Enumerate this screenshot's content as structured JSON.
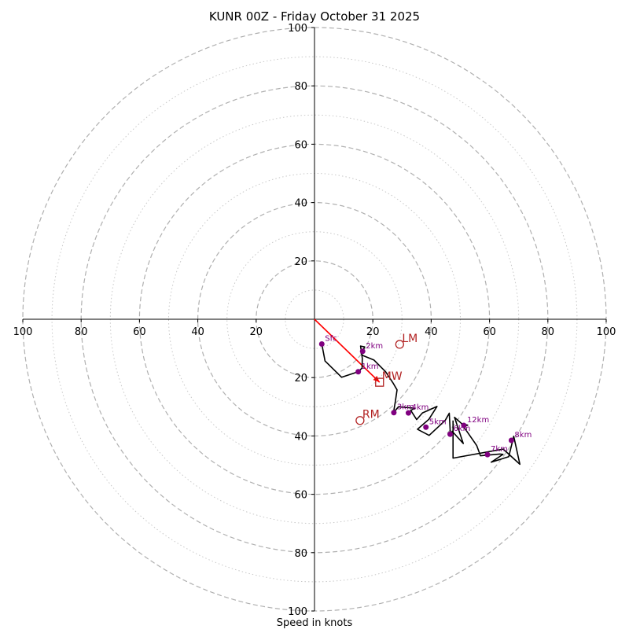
{
  "chart_data": {
    "type": "hodograph",
    "title": "KUNR 00Z - Friday October 31 2025",
    "xlabel": "Speed in knots",
    "axis_range": [
      -100,
      100
    ],
    "ring_major": [
      20,
      40,
      60,
      80,
      100
    ],
    "ring_minor": [
      10,
      30,
      50,
      70,
      90
    ],
    "x_tick_labels": [
      "100",
      "80",
      "60",
      "40",
      "20",
      "20",
      "40",
      "60",
      "80",
      "100"
    ],
    "x_tick_values": [
      -100,
      -80,
      -60,
      -40,
      -20,
      20,
      40,
      60,
      80,
      100
    ],
    "y_tick_labels": [
      "100",
      "80",
      "60",
      "40",
      "20",
      "20",
      "40",
      "60",
      "80",
      "100"
    ],
    "y_tick_values": [
      100,
      80,
      60,
      40,
      20,
      -20,
      -40,
      -60,
      -80,
      -100
    ],
    "trace": [
      [
        2.5,
        -8.5
      ],
      [
        3.6,
        -14.3
      ],
      [
        9.3,
        -19.9
      ],
      [
        15.0,
        -18.0
      ],
      [
        16.3,
        -16.7
      ],
      [
        16.4,
        -13.4
      ],
      [
        15.8,
        -9.2
      ],
      [
        17.2,
        -9.5
      ],
      [
        16.0,
        -11.7
      ],
      [
        16.5,
        -12.4
      ],
      [
        20.4,
        -14.0
      ],
      [
        24.4,
        -18.0
      ],
      [
        26.9,
        -21.8
      ],
      [
        28.3,
        -24.2
      ],
      [
        27.8,
        -27.7
      ],
      [
        27.1,
        -32.0
      ],
      [
        28.8,
        -30.0
      ],
      [
        34.5,
        -30.5
      ],
      [
        33.0,
        -31.2
      ],
      [
        35.0,
        -34.4
      ],
      [
        37.0,
        -32.1
      ],
      [
        42.0,
        -29.9
      ],
      [
        39.2,
        -34.3
      ],
      [
        35.3,
        -37.7
      ],
      [
        39.3,
        -39.8
      ],
      [
        44.8,
        -34.7
      ],
      [
        46.2,
        -32.2
      ],
      [
        46.5,
        -37.9
      ],
      [
        46.7,
        -40.1
      ],
      [
        47.2,
        -38.4
      ],
      [
        51.0,
        -42.6
      ],
      [
        48.0,
        -33.6
      ],
      [
        51.4,
        -36.6
      ],
      [
        52.5,
        -36.3
      ],
      [
        50.4,
        -35.8
      ],
      [
        55.6,
        -43.3
      ],
      [
        56.9,
        -46.8
      ],
      [
        63.5,
        -46.2
      ],
      [
        64.6,
        -46.3
      ],
      [
        60.6,
        -49.0
      ],
      [
        66.6,
        -47.1
      ],
      [
        68.3,
        -40.1
      ],
      [
        70.4,
        -49.7
      ],
      [
        64.7,
        -44.5
      ],
      [
        47.5,
        -47.6
      ],
      [
        47.5,
        -34.7
      ]
    ],
    "height_labels": [
      "Sfc",
      "1km",
      "2km",
      "3km",
      "4km",
      "5km",
      "6km",
      "7km",
      "8km",
      "12km"
    ],
    "height_points": [
      [
        2.5,
        -8.5
      ],
      [
        15.0,
        -18.0
      ],
      [
        16.5,
        -11.0
      ],
      [
        27.2,
        -32.0
      ],
      [
        32.2,
        -32.1
      ],
      [
        38.2,
        -37.0
      ],
      [
        46.5,
        -39.4
      ],
      [
        59.3,
        -46.4
      ],
      [
        67.5,
        -41.5
      ],
      [
        51.2,
        -36.4
      ]
    ],
    "storm_motion_labels": [
      "LM",
      "RM",
      "MW"
    ],
    "storm_motion_points": [
      [
        29.2,
        -8.6
      ],
      [
        15.6,
        -34.7
      ],
      [
        22.3,
        -21.6
      ]
    ],
    "shear_vector": [
      [
        0,
        0
      ],
      [
        22.3,
        -21.6
      ]
    ],
    "colors": {
      "trace": "#000000",
      "height_marker": "#800080",
      "storm_motion": "#b22222",
      "shear_vector": "#ff0000",
      "ring_major": "#b0b0b0",
      "ring_minor": "#c8c8c8",
      "axis": "#000000"
    }
  }
}
